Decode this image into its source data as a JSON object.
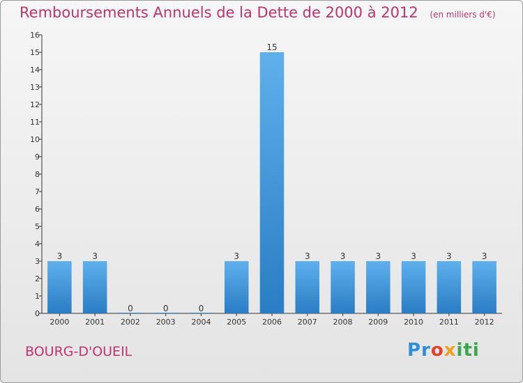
{
  "title": "Remboursements Annuels de la Dette de 2000 à 2012",
  "unit": "(en milliers d'€)",
  "commune": "BOURG-D'OUEIL",
  "logo": {
    "p1": "Pr",
    "p2": "o",
    "p3": "x",
    "p4": "iti"
  },
  "colors": {
    "bar": "#3d93dc",
    "title": "#c0336e",
    "axis": "#333333"
  },
  "chart_data": {
    "type": "bar",
    "categories": [
      "2000",
      "2001",
      "2002",
      "2003",
      "2004",
      "2005",
      "2006",
      "2007",
      "2008",
      "2009",
      "2010",
      "2011",
      "2012"
    ],
    "values": [
      3,
      3,
      0,
      0,
      0,
      3,
      15,
      3,
      3,
      3,
      3,
      3,
      3
    ],
    "yticks": [
      "0",
      "1",
      "2",
      "3",
      "4",
      "5",
      "6",
      "7",
      "8",
      "9",
      "10",
      "11",
      "12",
      "13",
      "14",
      "15",
      "16"
    ],
    "ylim": [
      0,
      16
    ],
    "grid": false,
    "data_labels": true
  }
}
